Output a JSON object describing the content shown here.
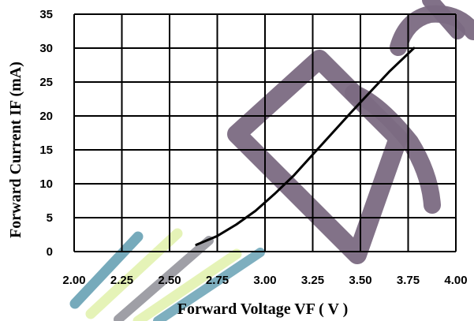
{
  "chart_data": {
    "type": "line",
    "xlabel": "Forward Voltage VF ( V )",
    "ylabel": "Forward Current IF (mA)",
    "xlim": [
      2.0,
      4.0
    ],
    "ylim": [
      0,
      35
    ],
    "x_ticks": [
      "2.00",
      "2.25",
      "2.50",
      "2.75",
      "3.00",
      "3.25",
      "3.50",
      "3.75",
      "4.00"
    ],
    "y_ticks": [
      "0",
      "5",
      "10",
      "15",
      "20",
      "25",
      "30",
      "35"
    ],
    "x_tick_values": [
      2.0,
      2.25,
      2.5,
      2.75,
      3.0,
      3.25,
      3.5,
      3.75,
      4.0
    ],
    "y_tick_values": [
      0,
      5,
      10,
      15,
      20,
      25,
      30,
      35
    ],
    "grid": true,
    "series": [
      {
        "color": "#000000",
        "x": [
          2.64,
          2.75,
          2.85,
          2.95,
          3.05,
          3.15,
          3.25,
          3.35,
          3.45,
          3.55,
          3.65,
          3.78
        ],
        "values": [
          1.0,
          2.3,
          4.0,
          6.0,
          8.5,
          11.2,
          14.3,
          17.4,
          20.5,
          23.5,
          26.5,
          30.0
        ]
      }
    ]
  },
  "watermark": {
    "colors": {
      "purple": "#7b6a82",
      "teal": "#5f9cb0",
      "light_green": "#e3f2b0",
      "gray": "#8f8f97"
    }
  }
}
